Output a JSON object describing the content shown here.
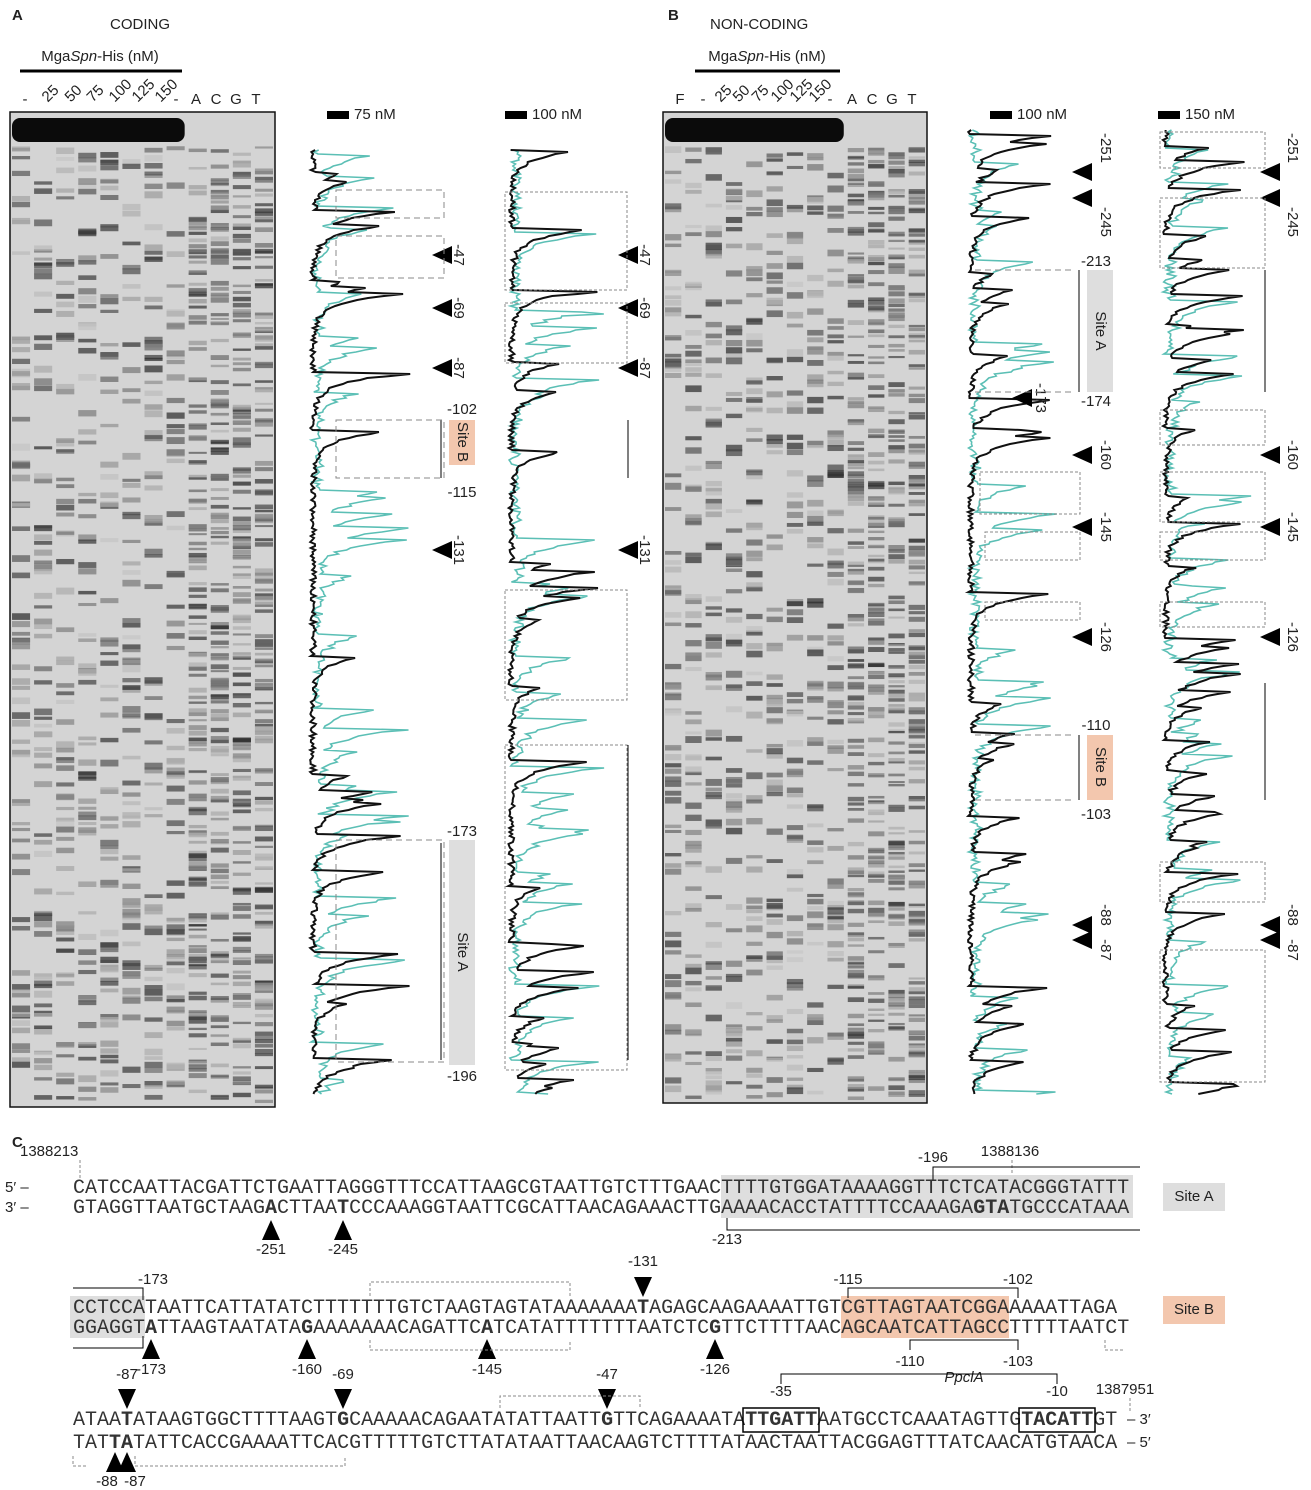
{
  "panel_a": {
    "label": "A",
    "title": "CODING",
    "protein": [
      "Mga",
      "Spn",
      "-His (nM)"
    ],
    "lanes": [
      "-",
      "25",
      "50",
      "75",
      "100",
      "125",
      "150",
      "-",
      "A",
      "C",
      "G",
      "T"
    ],
    "trace_1": {
      "legend": "75 nM",
      "sites": [
        "-47",
        "-69",
        "-87",
        "-131"
      ],
      "bounds": [
        "-102",
        "-115",
        "-173",
        "-196"
      ],
      "site_b": "Site B",
      "site_a": "Site A"
    },
    "trace_2": {
      "legend": "100 nM",
      "sites": [
        "-47",
        "-69",
        "-87",
        "-131"
      ]
    }
  },
  "panel_b": {
    "label": "B",
    "title": "NON-CODING",
    "protein": [
      "Mga",
      "Spn",
      "-His (nM)"
    ],
    "lanes": [
      "F",
      "-",
      "25",
      "50",
      "75",
      "100",
      "125",
      "150",
      "-",
      "A",
      "C",
      "G",
      "T"
    ],
    "trace_1": {
      "legend": "100 nM",
      "sites": [
        "-251",
        "-245",
        "-173",
        "-160",
        "-145",
        "-126",
        "-88",
        "-87"
      ],
      "bounds": [
        "-213",
        "-174",
        "-110",
        "-103"
      ],
      "site_a": "Site A",
      "site_b": "Site B"
    },
    "trace_2": {
      "legend": "150 nM",
      "sites": [
        "-251",
        "-245",
        "-160",
        "-145",
        "-126",
        "-88",
        "-87"
      ]
    }
  },
  "panel_c": {
    "label": "C",
    "line_1": {
      "coords": [
        "1388213",
        "1388136"
      ],
      "bounds": [
        "-196",
        "-213"
      ],
      "top_prefix": "5′ –",
      "bottom_prefix": "3′ –",
      "top": [
        "CATCCAATTACGATTCTGAATTAGGGTTTCCATTAAGCGTAATTGTCTTTGAACTTTTGTGGATAAAAGGTTTCTCATACGGGTATTT"
      ],
      "bottom": [
        "GTAGGTTAATGCTAAG",
        "A",
        "CTTAA",
        "T",
        "CCCAAAGGTAATTCGCATTAACAGAAACTTGAAAACACCTATTTTCCAAAGA",
        "GTA",
        "TGCCCATAAA"
      ],
      "marks": [
        "-251",
        "-245"
      ],
      "site": "Site A"
    },
    "line_2": {
      "bounds": [
        "-173",
        "-115",
        "-102",
        "-110",
        "-103"
      ],
      "promoter": "PpclA",
      "top": [
        "CCTCCATAATTCATTATATCTTTTTTTGTCTAAGTAGTATAAAAAAA",
        "T",
        "AGAGCAAGAAAATTGTCGTTAGTAATCGGAAAAATTAGA"
      ],
      "bottom": [
        "GGAGGT",
        "A",
        "TTAAGTAATATA",
        "G",
        "AAAAAAACAGATTC",
        "A",
        "TCATATTTTTTTAATCTC",
        "G",
        "TTCTTTTAACAGCAATCATTAGCCTTTTTAATCT"
      ],
      "marks_top": [
        "-131"
      ],
      "marks_bottom": [
        "-173",
        "-160",
        "-145",
        "-126"
      ],
      "site": "Site B"
    },
    "line_3": {
      "marks_top": [
        "-87",
        "-69",
        "-47"
      ],
      "boxes": [
        "-35",
        "-10"
      ],
      "coord": "1387951",
      "top": [
        "ATAA",
        "T",
        "ATAAGTGGCTTTTAAGT",
        "G",
        "CAAAAACAGAATATATTAATT",
        "G",
        "TTCAGAAAATA",
        "TTGATT",
        "AATGCCTCAAATAGTTG",
        "TACATT",
        "GT"
      ],
      "top_suffix": "– 3′",
      "bottom": [
        "TAT",
        "TA",
        "TATTCACCGAAAATTCACGTTTTTGTCTTATATAATTAACAAGTCTTTTATAACTAATTACGGAGTTTATCAACATGTAACA"
      ],
      "bottom_suffix": "– 5′",
      "marks_bottom": [
        "-88",
        "-87"
      ]
    }
  }
}
